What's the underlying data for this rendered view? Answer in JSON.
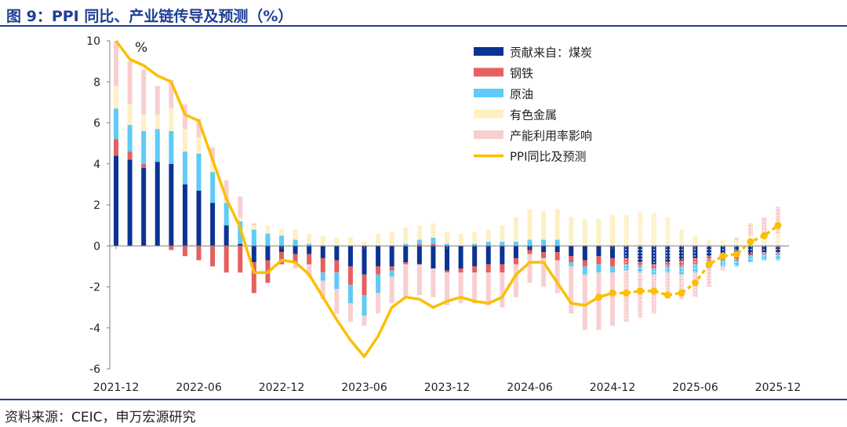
{
  "title": "图 9：PPI 同比、产业链传导及预测（%）",
  "source": "资料来源：CEIC，申万宏源研究",
  "chart_data": {
    "type": "bar",
    "stacked": true,
    "title": "图 9：PPI 同比、产业链传导及预测（%）",
    "unit_label": "%",
    "ylim": [
      -6,
      10
    ],
    "y_ticks": [
      "-6",
      "-4",
      "-2",
      "0",
      "2",
      "4",
      "6",
      "8",
      "10"
    ],
    "x_tick_labels": [
      "2021-12",
      "2022-06",
      "2022-12",
      "2023-06",
      "2023-12",
      "2024-06",
      "2024-12",
      "2025-06",
      "2025-12"
    ],
    "x_tick_every": 6,
    "categories": [
      "2021-12",
      "2022-01",
      "2022-02",
      "2022-03",
      "2022-04",
      "2022-05",
      "2022-06",
      "2022-07",
      "2022-08",
      "2022-09",
      "2022-10",
      "2022-11",
      "2022-12",
      "2023-01",
      "2023-02",
      "2023-03",
      "2023-04",
      "2023-05",
      "2023-06",
      "2023-07",
      "2023-08",
      "2023-09",
      "2023-10",
      "2023-11",
      "2023-12",
      "2024-01",
      "2024-02",
      "2024-03",
      "2024-04",
      "2024-05",
      "2024-06",
      "2024-07",
      "2024-08",
      "2024-09",
      "2024-10",
      "2024-11",
      "2024-12",
      "2025-01",
      "2025-02",
      "2025-03",
      "2025-04",
      "2025-05",
      "2025-06",
      "2025-07",
      "2025-08",
      "2025-09",
      "2025-10",
      "2025-11",
      "2025-12"
    ],
    "forecast_start": "2025-01",
    "series": [
      {
        "name": "贡献来自：煤炭",
        "color": "#0b3394",
        "kind": "bar",
        "values": [
          4.4,
          4.2,
          3.8,
          4.1,
          4.0,
          3.0,
          2.7,
          2.1,
          1.0,
          0.1,
          -0.8,
          -0.7,
          -0.3,
          -0.4,
          -0.4,
          -0.6,
          -0.7,
          -1.0,
          -1.4,
          -1.0,
          -1.0,
          -0.8,
          -0.9,
          -1.1,
          -1.2,
          -1.1,
          -1.0,
          -0.9,
          -0.9,
          -0.6,
          -0.2,
          -0.3,
          -0.3,
          -0.5,
          -0.7,
          -0.5,
          -0.6,
          -0.6,
          -0.8,
          -0.9,
          -0.8,
          -0.7,
          -0.6,
          -0.5,
          -0.5,
          -0.5,
          -0.4,
          -0.3,
          -0.3
        ]
      },
      {
        "name": "钢铁",
        "color": "#e5605f",
        "kind": "bar",
        "values": [
          0.8,
          0.4,
          0.2,
          0.0,
          -0.2,
          -0.5,
          -0.7,
          -1.0,
          -1.3,
          -1.3,
          -1.5,
          -1.1,
          -0.6,
          -0.4,
          -0.5,
          -0.7,
          -0.6,
          -0.9,
          -1.0,
          -0.4,
          -0.2,
          -0.1,
          0.1,
          0.1,
          -0.1,
          -0.2,
          -0.3,
          -0.4,
          -0.4,
          -0.3,
          -0.2,
          -0.3,
          -0.4,
          -0.3,
          -0.3,
          -0.4,
          -0.4,
          -0.3,
          -0.2,
          -0.2,
          -0.2,
          -0.3,
          -0.3,
          -0.2,
          -0.2,
          -0.2,
          -0.1,
          -0.1,
          -0.1
        ]
      },
      {
        "name": "原油",
        "color": "#5fcbf6",
        "kind": "bar",
        "values": [
          1.5,
          1.3,
          1.6,
          1.6,
          1.6,
          1.6,
          1.8,
          1.5,
          1.1,
          1.1,
          0.8,
          0.6,
          0.5,
          0.3,
          0.1,
          -0.4,
          -0.8,
          -0.9,
          -1.0,
          -0.9,
          -0.3,
          0.1,
          0.2,
          0.3,
          0.1,
          0.0,
          0.1,
          0.2,
          0.2,
          0.2,
          0.3,
          0.3,
          0.3,
          -0.2,
          -0.4,
          -0.4,
          -0.3,
          -0.3,
          -0.3,
          -0.3,
          -0.3,
          -0.4,
          -0.4,
          -0.4,
          -0.3,
          -0.3,
          -0.3,
          -0.3,
          -0.3
        ]
      },
      {
        "name": "有色金属",
        "color": "#fef0c5",
        "kind": "bar",
        "values": [
          1.1,
          1.0,
          0.8,
          0.7,
          1.1,
          1.1,
          0.8,
          0.5,
          0.1,
          0.2,
          0.2,
          0.4,
          0.3,
          0.5,
          0.5,
          0.5,
          0.4,
          0.4,
          0.2,
          0.6,
          0.7,
          0.8,
          0.7,
          0.7,
          0.6,
          0.6,
          0.6,
          0.6,
          0.8,
          1.2,
          1.5,
          1.4,
          1.5,
          1.4,
          1.3,
          1.3,
          1.5,
          1.5,
          1.7,
          1.6,
          1.4,
          0.8,
          0.5,
          0.3,
          0.3,
          0.3,
          0.5,
          0.5,
          0.6
        ]
      },
      {
        "name": "产能利用率影响",
        "color": "#f8cfd0",
        "kind": "bar",
        "values": [
          2.2,
          2.1,
          2.2,
          1.4,
          1.4,
          1.2,
          0.9,
          0.7,
          1.0,
          1.0,
          0.1,
          0.0,
          0.0,
          -0.3,
          -0.6,
          -0.9,
          -1.2,
          -0.9,
          -0.5,
          -1.0,
          -1.3,
          -1.6,
          -1.5,
          -1.4,
          -1.6,
          -1.5,
          -1.5,
          -1.6,
          -1.7,
          -1.6,
          -1.4,
          -1.4,
          -1.6,
          -2.3,
          -2.7,
          -2.8,
          -2.6,
          -2.5,
          -2.2,
          -1.9,
          -1.2,
          -1.2,
          -1.2,
          -0.9,
          -0.2,
          0.1,
          0.6,
          0.9,
          1.3
        ]
      },
      {
        "name": "PPI同比及预测",
        "color": "#fbbf00",
        "kind": "line",
        "values": [
          10.3,
          9.1,
          8.8,
          8.3,
          8.0,
          6.4,
          6.1,
          4.2,
          2.3,
          0.9,
          -1.3,
          -1.3,
          -0.7,
          -0.8,
          -1.4,
          -2.5,
          -3.6,
          -4.6,
          -5.4,
          -4.4,
          -3.0,
          -2.5,
          -2.6,
          -3.0,
          -2.7,
          -2.5,
          -2.7,
          -2.8,
          -2.5,
          -1.4,
          -0.8,
          -0.8,
          -1.8,
          -2.8,
          -2.9,
          -2.5,
          -2.3,
          -2.3,
          -2.2,
          -2.2,
          -2.4,
          -2.3,
          -1.8,
          -0.9,
          -0.5,
          -0.4,
          0.2,
          0.5,
          1.0
        ]
      }
    ]
  }
}
